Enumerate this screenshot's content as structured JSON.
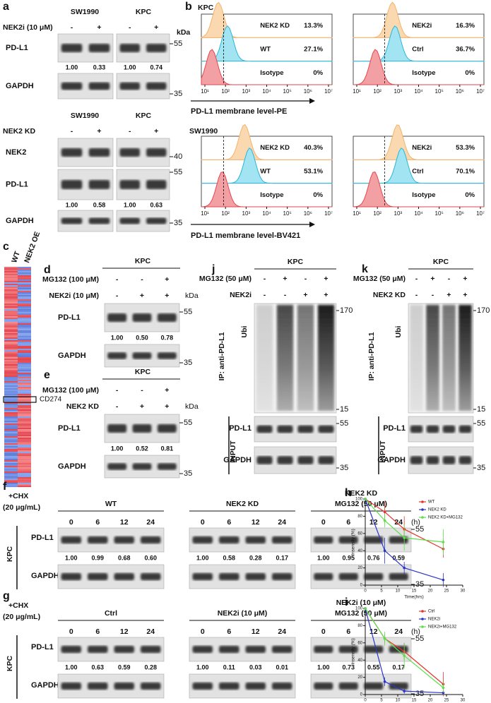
{
  "a": {
    "label": "a",
    "top": {
      "cells": [
        "SW1990",
        "KPC"
      ],
      "treatment": "NEK2i (10 μM)",
      "signs": [
        "-",
        "+",
        "-",
        "+"
      ],
      "rows": [
        "PD-L1",
        "GAPDH"
      ],
      "quant": [
        "1.00",
        "0.33",
        "1.00",
        "0.74"
      ],
      "markers": [
        "55",
        "35"
      ],
      "kda": "kDa"
    },
    "bottom": {
      "cells": [
        "SW1990",
        "KPC"
      ],
      "treatment": "NEK2 KD",
      "signs": [
        "-",
        "+",
        "-",
        "+"
      ],
      "rows": [
        "NEK2",
        "PD-L1",
        "GAPDH"
      ],
      "quant": [
        "1.00",
        "0.58",
        "1.00",
        "0.63"
      ],
      "markers": [
        "40",
        "55",
        "35"
      ]
    }
  },
  "b": {
    "label": "b",
    "kpc_title": "KPC",
    "sw_title": "SW1990",
    "kda_note": null,
    "plots": [
      {
        "labels": [
          "NEK2 KD",
          "WT",
          "Isotype"
        ],
        "pcts": [
          "13.3%",
          "27.1%",
          "0%"
        ]
      },
      {
        "labels": [
          "NEK2i",
          "Ctrl",
          "Isotype"
        ],
        "pcts": [
          "16.3%",
          "36.7%",
          "0%"
        ]
      },
      {
        "labels": [
          "NEK2 KD",
          "WT",
          "Isotype"
        ],
        "pcts": [
          "40.3%",
          "53.1%",
          "0%"
        ]
      },
      {
        "labels": [
          "NEK2i",
          "Ctrl",
          "Isotype"
        ],
        "pcts": [
          "53.3%",
          "70.1%",
          "0%"
        ]
      }
    ],
    "xticks": [
      "10¹",
      "10²",
      "10³",
      "10⁴",
      "10⁵",
      "10⁶",
      "10⁷"
    ],
    "xlabel_top": "PD-L1 membrane level-PE",
    "xlabel_bottom": "PD-L1 membrane level-BV421"
  },
  "c": {
    "label": "c",
    "cols": [
      "WT",
      "NEK2 OE"
    ],
    "gene": "CD274"
  },
  "d": {
    "label": "d",
    "cell": "KPC",
    "treatments": [
      {
        "name": "MG132 (100 μM)",
        "signs": [
          "-",
          "-",
          "+"
        ]
      },
      {
        "name": "NEK2i (10 μM)",
        "signs": [
          "-",
          "+",
          "+"
        ]
      }
    ],
    "rows": [
      "PD-L1",
      "GAPDH"
    ],
    "quant": [
      "1.00",
      "0.50",
      "0.78"
    ],
    "markers": [
      "55",
      "35"
    ],
    "kda": "kDa"
  },
  "e": {
    "label": "e",
    "cell": "KPC",
    "treatments": [
      {
        "name": "MG132 (100 μM)",
        "signs": [
          "-",
          "-",
          "+"
        ]
      },
      {
        "name": "NEK2 KD",
        "signs": [
          "-",
          "+",
          "+"
        ]
      }
    ],
    "rows": [
      "PD-L1",
      "GAPDH"
    ],
    "quant": [
      "1.00",
      "0.52",
      "0.81"
    ],
    "markers": [
      "55",
      "35"
    ],
    "kda": "kDa"
  },
  "j": {
    "label": "j",
    "cell": "KPC",
    "treatments": [
      {
        "name": "MG132 (50 μM)",
        "signs": [
          "-",
          "+",
          "-",
          "+"
        ]
      },
      {
        "name": "NEK2i",
        "signs": [
          "-",
          "-",
          "+",
          "+"
        ]
      }
    ],
    "ip": "IP: anti-PD-L1",
    "ubi": "Ubi",
    "input": "INPUT",
    "rows": [
      "PD-L1",
      "GAPDH"
    ],
    "markers": [
      "170",
      "15",
      "55",
      "35"
    ]
  },
  "k": {
    "label": "k",
    "cell": "KPC",
    "treatments": [
      {
        "name": "MG132 (50 μM)",
        "signs": [
          "-",
          "+",
          "-",
          "+"
        ]
      },
      {
        "name": "NEK2 KD",
        "signs": [
          "-",
          "-",
          "+",
          "+"
        ]
      }
    ],
    "ip": "IP: anti-PD-L1",
    "ubi": "Ubi",
    "input": "INPUT",
    "rows": [
      "PD-L1",
      "GAPDH"
    ],
    "markers": [
      "170",
      "15",
      "55",
      "35"
    ]
  },
  "f": {
    "label": "f",
    "chx": [
      "+CHX",
      "(20 μg/mL)"
    ],
    "cell": "KPC",
    "unit": "(h)",
    "rows": [
      "PD-L1",
      "GAPDH"
    ],
    "markers": [
      "55",
      "35"
    ],
    "groups": [
      {
        "name": [
          "WT"
        ],
        "times": [
          "0",
          "6",
          "12",
          "24"
        ],
        "quant": [
          "1.00",
          "0.99",
          "0.68",
          "0.60"
        ]
      },
      {
        "name": [
          "NEK2 KD"
        ],
        "times": [
          "0",
          "6",
          "12",
          "24"
        ],
        "quant": [
          "1.00",
          "0.58",
          "0.28",
          "0.17"
        ]
      },
      {
        "name": [
          "NEK2 KD",
          "MG132 (50 μM)"
        ],
        "times": [
          "0",
          "6",
          "12",
          "24"
        ],
        "quant": [
          "1.00",
          "0.95",
          "0.76",
          "0.59"
        ]
      }
    ]
  },
  "g": {
    "label": "g",
    "chx": [
      "+CHX",
      "(20 μg/mL)"
    ],
    "cell": "KPC",
    "unit": "(h)",
    "rows": [
      "PD-L1",
      "GAPDH"
    ],
    "markers": [
      "55",
      "35"
    ],
    "groups": [
      {
        "name": [
          "Ctrl"
        ],
        "times": [
          "0",
          "6",
          "12",
          "24"
        ],
        "quant": [
          "1.00",
          "0.63",
          "0.59",
          "0.28"
        ]
      },
      {
        "name": [
          "NEK2i (10 μM)"
        ],
        "times": [
          "0",
          "6",
          "12",
          "24"
        ],
        "quant": [
          "1.00",
          "0.11",
          "0.03",
          "0.01"
        ]
      },
      {
        "name": [
          "NEK2i (10 μM)",
          "MG132 (50 μM)"
        ],
        "times": [
          "0",
          "6",
          "12",
          "24"
        ],
        "quant": [
          "1.00",
          "0.73",
          "0.55",
          "0.17"
        ]
      }
    ]
  },
  "chart_data": [
    {
      "type": "line",
      "label": "h",
      "x": [
        0,
        6,
        12,
        24
      ],
      "xlim": [
        0,
        30
      ],
      "xticks": [
        0,
        5,
        10,
        15,
        20,
        25,
        30
      ],
      "ylim": [
        0,
        100
      ],
      "yticks": [
        0,
        20,
        40,
        60,
        80,
        100
      ],
      "xlabel": "Time(hrs)",
      "ylabel": "Insensity (%)",
      "legend": "top-right",
      "series": [
        {
          "name": "WT",
          "color": "#e8322a",
          "values": [
            100,
            85,
            65,
            42
          ],
          "errors": [
            0,
            12,
            15,
            10
          ]
        },
        {
          "name": "NEK2 KD",
          "color": "#2b35c8",
          "values": [
            100,
            40,
            20,
            6
          ],
          "errors": [
            0,
            15,
            7,
            8
          ]
        },
        {
          "name": "NEK2 KD+MG132",
          "color": "#5be04a",
          "values": [
            100,
            75,
            55,
            50
          ],
          "errors": [
            0,
            8,
            15,
            15
          ]
        }
      ]
    },
    {
      "type": "line",
      "label": "i",
      "x": [
        0,
        6,
        12,
        24
      ],
      "xlim": [
        0,
        30
      ],
      "xticks": [
        0,
        5,
        10,
        15,
        20,
        25,
        30
      ],
      "ylim": [
        0,
        100
      ],
      "yticks": [
        0,
        20,
        40,
        60,
        80,
        100
      ],
      "xlabel": "Time(hrs)",
      "ylabel": "Insensity (%)",
      "legend": "top-right",
      "series": [
        {
          "name": "Ctrl",
          "color": "#e8322a",
          "values": [
            100,
            65,
            50,
            12
          ],
          "errors": [
            0,
            5,
            10,
            14
          ]
        },
        {
          "name": "NEK2i",
          "color": "#2b35c8",
          "values": [
            100,
            15,
            4,
            2
          ],
          "errors": [
            0,
            5,
            3,
            2
          ]
        },
        {
          "name": "NEK2i+MG132",
          "color": "#5be04a",
          "values": [
            100,
            65,
            45,
            8
          ],
          "errors": [
            0,
            8,
            15,
            6
          ]
        }
      ]
    }
  ]
}
